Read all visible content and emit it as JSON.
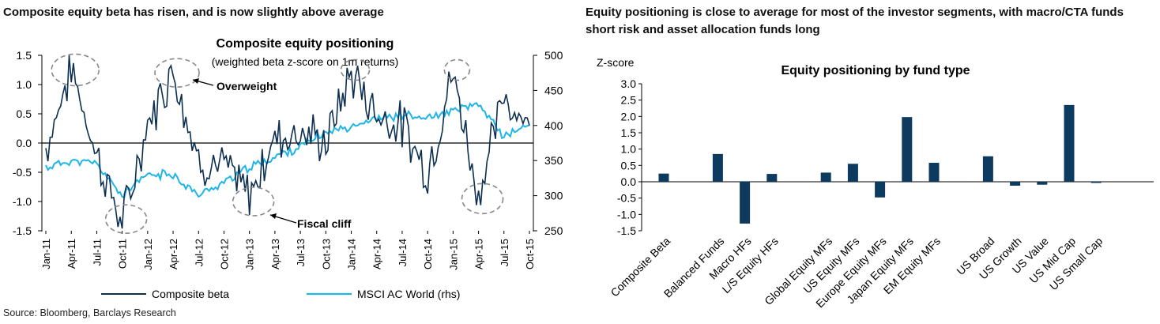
{
  "left_heading": "Composite equity beta has risen, and is now slightly above average",
  "right_heading": "Equity positioning is close to average for most of the investor segments, with macro/CTA funds short risk and asset allocation funds long",
  "source": "Source: Bloomberg, Barclays Research",
  "colors": {
    "beta": "#0d2f50",
    "msci": "#1fb5e6",
    "bar": "#0d3a5f",
    "annotation": "#888888"
  },
  "chart_data": [
    {
      "type": "line",
      "title": "Composite equity positioning",
      "subtitle": "(weighted beta z-score on 1m returns)",
      "x": [
        "Jan-11",
        "Apr-11",
        "Jul-11",
        "Oct-11",
        "Jan-12",
        "Apr-12",
        "Jul-12",
        "Oct-12",
        "Jan-13",
        "Apr-13",
        "Jul-13",
        "Oct-13",
        "Jan-14",
        "Apr-14",
        "Jul-14",
        "Oct-14",
        "Jan-15",
        "Apr-15",
        "Jul-15",
        "Oct-15"
      ],
      "ylim": [
        -1.5,
        1.5
      ],
      "yticks": [
        "1.5",
        "1.0",
        "0.5",
        "0.0",
        "-0.5",
        "-1.0",
        "-1.5"
      ],
      "y2lim": [
        250,
        500
      ],
      "y2ticks": [
        "500",
        "450",
        "400",
        "350",
        "300",
        "250"
      ],
      "annotations": [
        {
          "label": "Overweight"
        },
        {
          "label": "Fiscal cliff"
        }
      ],
      "series": [
        {
          "name": "Composite beta",
          "axis": "left",
          "values": [
            -0.1,
            1.3,
            -0.2,
            -1.4,
            0.3,
            1.3,
            -0.3,
            -0.4,
            -0.9,
            0.1,
            0.2,
            0.0,
            1.2,
            0.5,
            0.3,
            -0.5,
            1.2,
            -0.9,
            0.8,
            0.3
          ]
        },
        {
          "name": "MSCI AC World (rhs)",
          "axis": "right",
          "values": [
            340,
            350,
            345,
            300,
            330,
            330,
            300,
            320,
            340,
            355,
            370,
            390,
            400,
            410,
            415,
            410,
            420,
            430,
            385,
            400
          ]
        }
      ]
    },
    {
      "type": "bar",
      "title": "Equity positioning by fund type",
      "ylabel": "Z-score",
      "ylim": [
        -1.5,
        3.0
      ],
      "yticks": [
        "3.0",
        "2.5",
        "2.0",
        "1.5",
        "1.0",
        "0.5",
        "0.0",
        "-0.5",
        "-1.0",
        "-1.5"
      ],
      "categories": [
        "Composite Beta",
        "Balanced Funds",
        "Macro HFs",
        "L/S Equity HFs",
        "Global Equity MFs",
        "US Equity MFs",
        "Europe Equity MFs",
        "Japan Equity MFs",
        "EM Equity MFs",
        "US Broad",
        "US Growth",
        "US Value",
        "US Mid Cap",
        "US Small Cap"
      ],
      "values": [
        0.25,
        0.85,
        -1.28,
        0.24,
        0.28,
        0.55,
        -0.48,
        1.98,
        0.58,
        0.78,
        -0.12,
        -0.09,
        2.35,
        -0.03
      ]
    }
  ]
}
